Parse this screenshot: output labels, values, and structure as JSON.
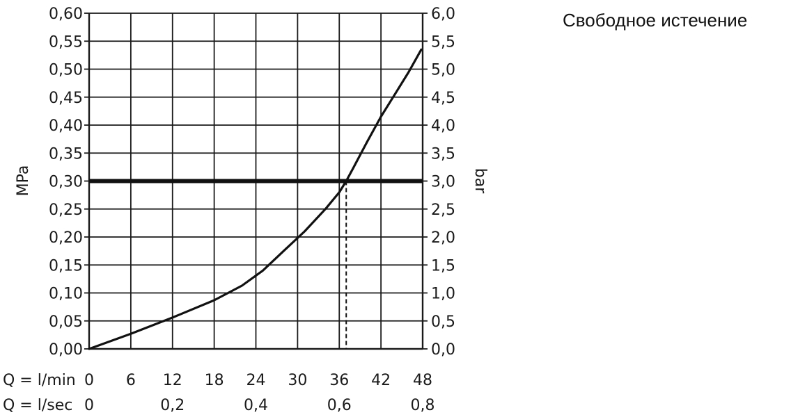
{
  "caption": "Свободное истечение",
  "chart_data": {
    "type": "line",
    "title": "",
    "ylabel_left": "MPa",
    "ylabel_right": "bar",
    "xlabel_min": "Q = l/min",
    "xlabel_sec": "Q = l/sec",
    "x_ticks_min": [
      "0",
      "6",
      "12",
      "18",
      "24",
      "30",
      "36",
      "42",
      "48"
    ],
    "x_ticks_sec": [
      "0",
      "0,2",
      "0,4",
      "0,6",
      "0,8"
    ],
    "y_ticks_left": [
      "0,00",
      "0,05",
      "0,10",
      "0,15",
      "0,20",
      "0,25",
      "0,30",
      "0,35",
      "0,40",
      "0,45",
      "0,50",
      "0,55",
      "0,60"
    ],
    "y_ticks_right": [
      "0,0",
      "0,5",
      "1,0",
      "1,5",
      "2,0",
      "2,5",
      "3,0",
      "3,5",
      "4,0",
      "4,5",
      "5,0",
      "5,5",
      "6,0"
    ],
    "xlim": [
      0,
      48
    ],
    "ylim": [
      0,
      0.6
    ],
    "grid": true,
    "series": [
      {
        "x": [
          0,
          6,
          12,
          18,
          22,
          25,
          28,
          31,
          34,
          36,
          37,
          38,
          40,
          42,
          44,
          46,
          47.8
        ],
        "y": [
          0,
          0.027,
          0.056,
          0.087,
          0.113,
          0.14,
          0.175,
          0.21,
          0.25,
          0.28,
          0.3,
          0.323,
          0.37,
          0.415,
          0.455,
          0.495,
          0.535
        ]
      }
    ],
    "reference_line": {
      "y": 0.3
    },
    "marker_x": 37
  }
}
